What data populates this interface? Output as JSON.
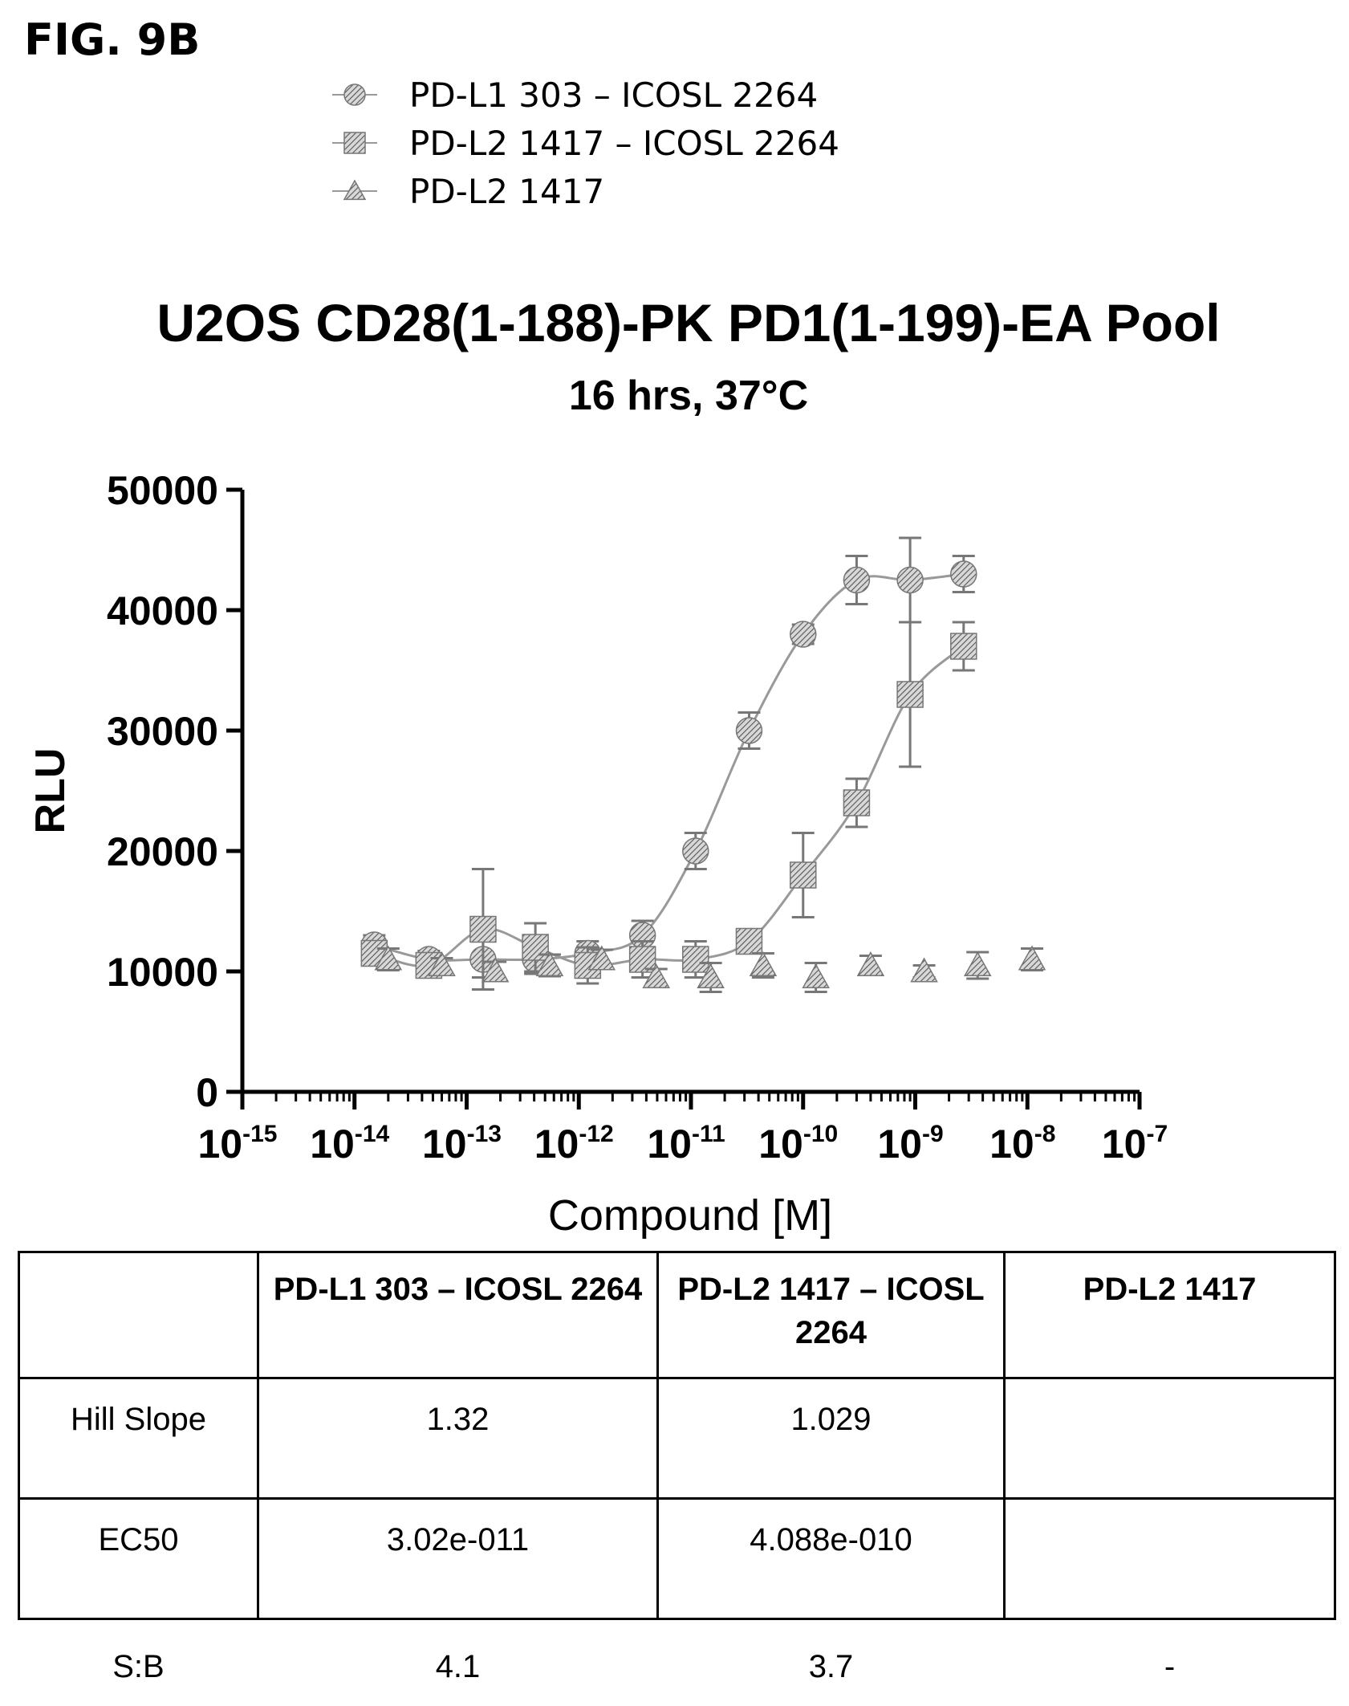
{
  "figure_label": "FIG. 9B",
  "colors": {
    "marker": "#8a8a8a",
    "axis": "#000000"
  },
  "chart_data": {
    "type": "scatter",
    "title": "U2OS CD28(1-188)-PK PD1(1-199)-EA Pool",
    "subtitle": "16 hrs, 37°C",
    "xlabel": "Compound [M]",
    "ylabel": "RLU",
    "x_scale": "log",
    "xlim": [
      1e-15,
      1e-07
    ],
    "ylim": [
      0,
      50000
    ],
    "x_ticks": [
      {
        "base": "10",
        "exp": "-15"
      },
      {
        "base": "10",
        "exp": "-14"
      },
      {
        "base": "10",
        "exp": "-13"
      },
      {
        "base": "10",
        "exp": "-12"
      },
      {
        "base": "10",
        "exp": "-11"
      },
      {
        "base": "10",
        "exp": "-10"
      },
      {
        "base": "10",
        "exp": "-9"
      },
      {
        "base": "10",
        "exp": "-8"
      },
      {
        "base": "10",
        "exp": "-7"
      }
    ],
    "y_ticks": [
      "0",
      "10000",
      "20000",
      "30000",
      "40000",
      "50000"
    ],
    "legend_position": "top-left",
    "series": [
      {
        "name": "PD-L1 303 – ICOSL 2264",
        "marker": "circle",
        "fit": true,
        "points": [
          {
            "x": 1.5e-14,
            "y": 12200,
            "err": 800
          },
          {
            "x": 4.6e-14,
            "y": 11000,
            "err": 700
          },
          {
            "x": 1.4e-13,
            "y": 11000,
            "err": 1500
          },
          {
            "x": 4.1e-13,
            "y": 11000,
            "err": 1200
          },
          {
            "x": 1.2e-12,
            "y": 11500,
            "err": 1000
          },
          {
            "x": 3.7e-12,
            "y": 13000,
            "err": 1200
          },
          {
            "x": 1.1e-11,
            "y": 20000,
            "err": 1500
          },
          {
            "x": 3.3e-11,
            "y": 30000,
            "err": 1500
          },
          {
            "x": 1e-10,
            "y": 38000,
            "err": 800
          },
          {
            "x": 3e-10,
            "y": 42500,
            "err": 2000
          },
          {
            "x": 9e-10,
            "y": 42500,
            "err": 3500
          },
          {
            "x": 2.7e-09,
            "y": 43000,
            "err": 1500
          }
        ]
      },
      {
        "name": "PD-L2 1417 – ICOSL 2264",
        "marker": "square",
        "fit": true,
        "points": [
          {
            "x": 1.5e-14,
            "y": 11500,
            "err": 900
          },
          {
            "x": 4.6e-14,
            "y": 10500,
            "err": 700
          },
          {
            "x": 1.4e-13,
            "y": 13500,
            "err": 5000
          },
          {
            "x": 4.1e-13,
            "y": 12000,
            "err": 2000
          },
          {
            "x": 1.2e-12,
            "y": 10500,
            "err": 1500
          },
          {
            "x": 3.7e-12,
            "y": 11000,
            "err": 1500
          },
          {
            "x": 1.1e-11,
            "y": 11000,
            "err": 1500
          },
          {
            "x": 3.3e-11,
            "y": 12500,
            "err": 800
          },
          {
            "x": 1e-10,
            "y": 18000,
            "err": 3500
          },
          {
            "x": 3e-10,
            "y": 24000,
            "err": 2000
          },
          {
            "x": 9e-10,
            "y": 33000,
            "err": 6000
          },
          {
            "x": 2.7e-09,
            "y": 37000,
            "err": 2000
          }
        ]
      },
      {
        "name": "PD-L2 1417",
        "marker": "triangle",
        "fit": false,
        "points": [
          {
            "x": 2e-14,
            "y": 11000,
            "err": 900
          },
          {
            "x": 6e-14,
            "y": 10500,
            "err": 600
          },
          {
            "x": 1.8e-13,
            "y": 10000,
            "err": 800
          },
          {
            "x": 5.5e-13,
            "y": 10500,
            "err": 900
          },
          {
            "x": 1.6e-12,
            "y": 11000,
            "err": 800
          },
          {
            "x": 4.9e-12,
            "y": 9500,
            "err": 700
          },
          {
            "x": 1.5e-11,
            "y": 9500,
            "err": 1200
          },
          {
            "x": 4.4e-11,
            "y": 10500,
            "err": 1000
          },
          {
            "x": 1.3e-10,
            "y": 9500,
            "err": 1200
          },
          {
            "x": 4e-10,
            "y": 10500,
            "err": 800
          },
          {
            "x": 1.2e-09,
            "y": 10000,
            "err": 500
          },
          {
            "x": 3.6e-09,
            "y": 10500,
            "err": 1100
          },
          {
            "x": 1.1e-08,
            "y": 11000,
            "err": 900
          }
        ]
      }
    ]
  },
  "table": {
    "headers": [
      "",
      "PD-L1 303 – ICOSL 2264",
      "PD-L2 1417 – ICOSL 2264",
      "PD-L2 1417"
    ],
    "rows": [
      [
        "Hill Slope",
        "1.32",
        "1.029",
        ""
      ],
      [
        "EC50",
        "3.02e-011",
        "4.088e-010",
        ""
      ],
      [
        "S:B",
        "4.1",
        "3.7",
        "-"
      ]
    ]
  }
}
